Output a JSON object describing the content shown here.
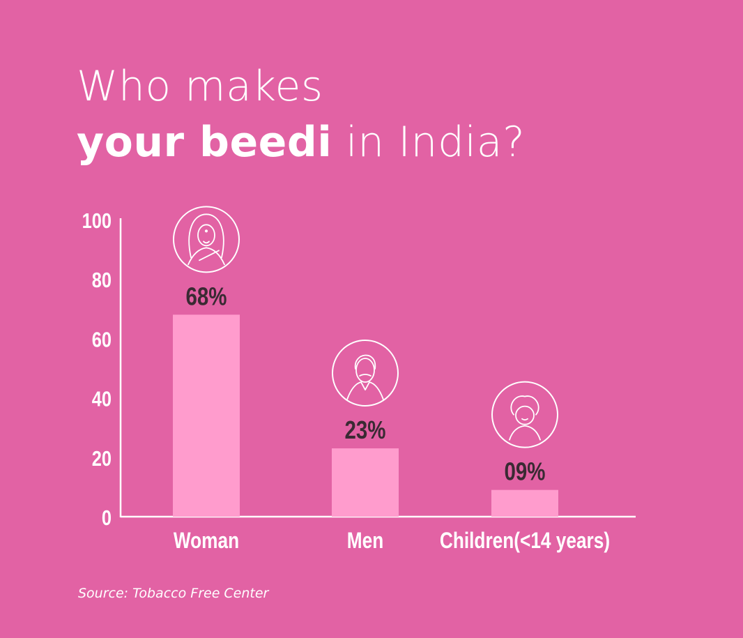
{
  "title": {
    "line1": "Who makes",
    "line2_bold": "your beedi",
    "line2_rest": " in India?"
  },
  "source": "Source: Tobacco Free Center",
  "colors": {
    "background": "#e262a4",
    "bar": "#ff9ccd",
    "axis": "#ffffff",
    "value_label": "#3a2a33",
    "icon": "#ffffff"
  },
  "chart_data": {
    "type": "bar",
    "categories": [
      "Woman",
      "Men",
      "Children(<14 years)"
    ],
    "values": [
      68,
      23,
      9
    ],
    "data_labels": [
      "68%",
      "23%",
      "09%"
    ],
    "icons": [
      "woman-icon",
      "man-icon",
      "child-icon"
    ],
    "yticks": [
      "0",
      "20",
      "40",
      "60",
      "80",
      "100"
    ],
    "ylim": [
      0,
      100
    ],
    "grid": false
  }
}
